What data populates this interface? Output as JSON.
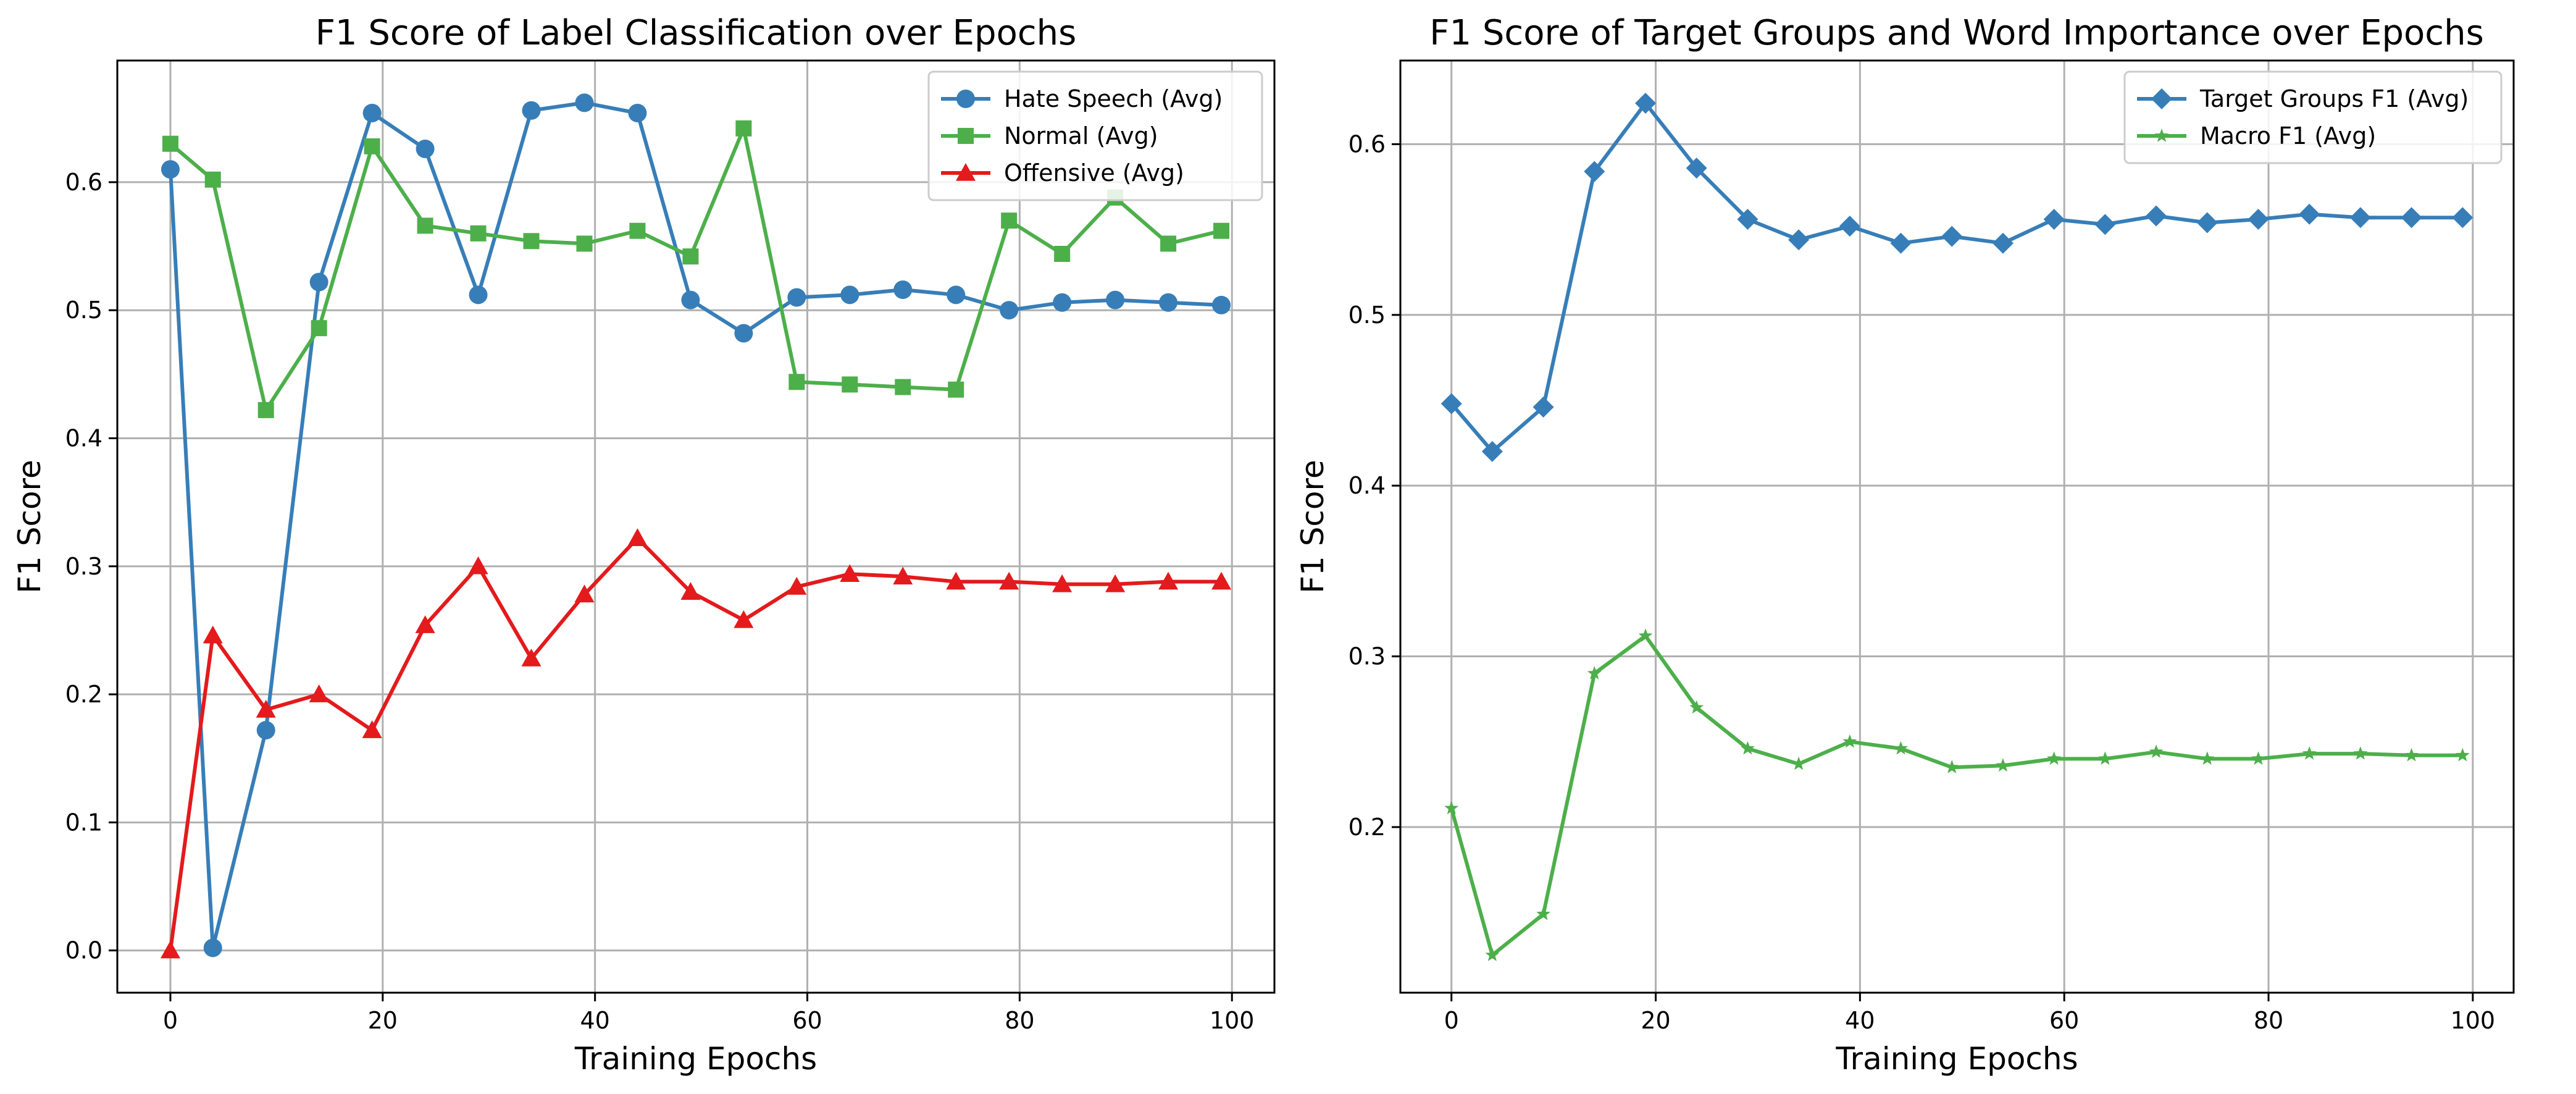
{
  "chart_data": [
    {
      "type": "line",
      "title": "F1 Score of Label Classification over Epochs",
      "xlabel": "Training Epochs",
      "ylabel": "F1 Score",
      "xlim": [
        -5,
        104
      ],
      "ylim": [
        -0.033,
        0.695
      ],
      "xticks": [
        0,
        20,
        40,
        60,
        80,
        100
      ],
      "yticks": [
        0.0,
        0.1,
        0.2,
        0.3,
        0.4,
        0.5,
        0.6
      ],
      "ytick_labels": [
        "0.0",
        "0.1",
        "0.2",
        "0.3",
        "0.4",
        "0.5",
        "0.6"
      ],
      "grid": true,
      "legend_position": "top-right",
      "x": [
        0,
        4,
        9,
        14,
        19,
        24,
        29,
        34,
        39,
        44,
        49,
        54,
        59,
        64,
        69,
        74,
        79,
        84,
        89,
        94,
        99
      ],
      "series": [
        {
          "name": "Hate Speech (Avg)",
          "color": "#377eb8",
          "marker": "circle",
          "values": [
            0.61,
            0.002,
            0.172,
            0.522,
            0.654,
            0.626,
            0.512,
            0.656,
            0.662,
            0.654,
            0.508,
            0.482,
            0.51,
            0.512,
            0.516,
            0.512,
            0.5,
            0.506,
            0.508,
            0.506,
            0.504
          ]
        },
        {
          "name": "Normal (Avg)",
          "color": "#4daf4a",
          "marker": "square",
          "values": [
            0.63,
            0.602,
            0.422,
            0.486,
            0.628,
            0.566,
            0.56,
            0.554,
            0.552,
            0.562,
            0.542,
            0.642,
            0.444,
            0.442,
            0.44,
            0.438,
            0.57,
            0.544,
            0.588,
            0.552,
            0.562
          ]
        },
        {
          "name": "Offensive (Avg)",
          "color": "#e41a1c",
          "marker": "triangle",
          "values": [
            0.0,
            0.246,
            0.188,
            0.2,
            0.172,
            0.254,
            0.3,
            0.228,
            0.278,
            0.322,
            0.28,
            0.258,
            0.284,
            0.294,
            0.292,
            0.288,
            0.288,
            0.286,
            0.286,
            0.288,
            0.288
          ]
        }
      ]
    },
    {
      "type": "line",
      "title": "F1 Score of Target Groups and Word Importance over Epochs",
      "xlabel": "Training Epochs",
      "ylabel": "F1 Score",
      "xlim": [
        -5,
        104
      ],
      "ylim": [
        0.103,
        0.649
      ],
      "xticks": [
        0,
        20,
        40,
        60,
        80,
        100
      ],
      "yticks": [
        0.2,
        0.3,
        0.4,
        0.5,
        0.6
      ],
      "ytick_labels": [
        "0.2",
        "0.3",
        "0.4",
        "0.5",
        "0.6"
      ],
      "grid": true,
      "legend_position": "top-right",
      "x": [
        0,
        4,
        9,
        14,
        19,
        24,
        29,
        34,
        39,
        44,
        49,
        54,
        59,
        64,
        69,
        74,
        79,
        84,
        89,
        94,
        99
      ],
      "series": [
        {
          "name": "Target Groups F1 (Avg)",
          "color": "#377eb8",
          "marker": "diamond",
          "values": [
            0.448,
            0.42,
            0.446,
            0.584,
            0.624,
            0.586,
            0.556,
            0.544,
            0.552,
            0.542,
            0.546,
            0.542,
            0.556,
            0.553,
            0.558,
            0.554,
            0.556,
            0.559,
            0.557,
            0.557,
            0.557
          ]
        },
        {
          "name": "Macro F1 (Avg)",
          "color": "#4daf4a",
          "marker": "star",
          "values": [
            0.211,
            0.125,
            0.149,
            0.29,
            0.312,
            0.27,
            0.246,
            0.237,
            0.25,
            0.246,
            0.235,
            0.236,
            0.24,
            0.24,
            0.244,
            0.24,
            0.24,
            0.243,
            0.243,
            0.242,
            0.242
          ]
        }
      ]
    }
  ]
}
